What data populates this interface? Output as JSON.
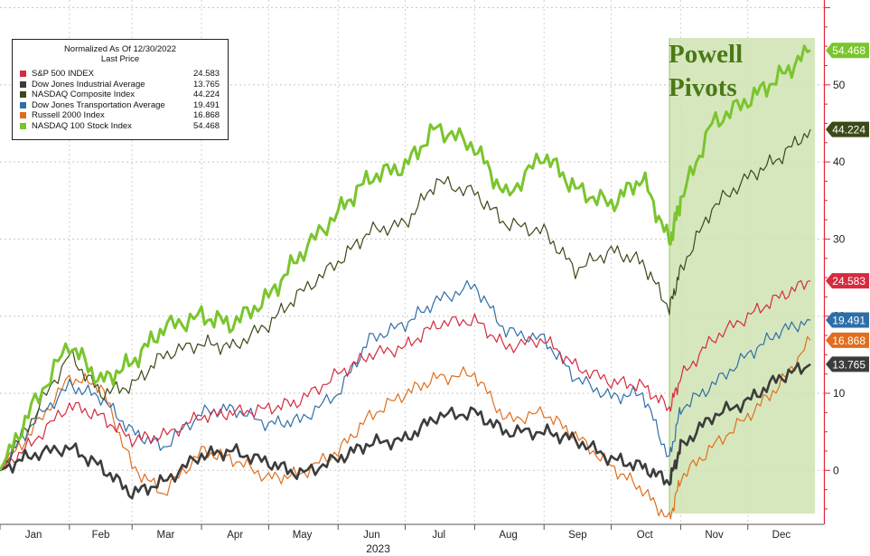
{
  "chart_data": {
    "type": "line",
    "title": "",
    "xlabel": "2023",
    "ylabel": "",
    "ylim": [
      -7,
      61
    ],
    "x_ticks": [
      "Jan",
      "Feb",
      "Mar",
      "Apr",
      "May",
      "Jun",
      "Jul",
      "Aug",
      "Sep",
      "Oct",
      "Nov",
      "Dec"
    ],
    "y_ticks": [
      0,
      10,
      20,
      30,
      40,
      50
    ],
    "grid": true,
    "legend_placement": "top-left",
    "legend_header": [
      "Normalized As Of 12/30/2022",
      "Last Price"
    ],
    "annotation": {
      "text": "Powell\nPivots",
      "x_start": "2023-10-27",
      "x_end": "2023-12-31"
    },
    "x": [
      "2023-01-01",
      "2023-01-15",
      "2023-02-01",
      "2023-02-15",
      "2023-03-01",
      "2023-03-15",
      "2023-04-01",
      "2023-04-15",
      "2023-05-01",
      "2023-05-15",
      "2023-06-01",
      "2023-06-15",
      "2023-07-01",
      "2023-07-15",
      "2023-08-01",
      "2023-08-15",
      "2023-09-01",
      "2023-09-15",
      "2023-10-01",
      "2023-10-15",
      "2023-10-27",
      "2023-11-01",
      "2023-11-15",
      "2023-12-01",
      "2023-12-15",
      "2023-12-29"
    ],
    "series": [
      {
        "name": "S&P 500 INDEX",
        "color": "#d62a3f",
        "last": "24.583",
        "width": 1.2,
        "values": [
          0,
          3.5,
          8.5,
          7.0,
          4.0,
          4.5,
          7.0,
          7.5,
          8.0,
          9.0,
          12.5,
          15.0,
          16.0,
          19.0,
          19.5,
          16.0,
          17.0,
          13.5,
          11.5,
          11.0,
          8.0,
          12.0,
          17.0,
          20.0,
          22.5,
          24.583
        ]
      },
      {
        "name": "Dow Jones Industrial Average",
        "color": "#3c3c3c",
        "last": "13.765",
        "width": 2.6,
        "values": [
          0,
          2.0,
          3.0,
          0.5,
          -3.0,
          -1.5,
          2.0,
          2.5,
          1.0,
          -0.5,
          1.5,
          3.5,
          4.0,
          7.0,
          7.5,
          5.0,
          5.0,
          4.0,
          1.5,
          0.5,
          -1.5,
          3.0,
          7.0,
          9.0,
          12.0,
          13.765
        ]
      },
      {
        "name": "NASDAQ Composite Index",
        "color": "#3a4a18",
        "last": "44.224",
        "width": 1.2,
        "values": [
          0,
          6.5,
          15.0,
          10.0,
          11.0,
          15.0,
          16.5,
          16.0,
          19.0,
          23.0,
          27.0,
          31.0,
          32.0,
          37.5,
          36.0,
          32.0,
          31.0,
          26.0,
          28.5,
          27.0,
          21.0,
          26.0,
          34.0,
          38.0,
          40.5,
          44.224
        ]
      },
      {
        "name": "Dow Jones Transportation Average",
        "color": "#2e6ea8",
        "last": "19.491",
        "width": 1.2,
        "values": [
          0,
          6.0,
          11.0,
          9.5,
          5.0,
          3.0,
          7.5,
          8.0,
          6.0,
          6.5,
          10.0,
          17.0,
          19.0,
          22.0,
          24.0,
          18.0,
          17.0,
          12.0,
          9.5,
          10.0,
          1.5,
          8.0,
          11.0,
          15.0,
          18.0,
          19.491
        ]
      },
      {
        "name": "Russell 2000 Index",
        "color": "#e06e1e",
        "last": "16.868",
        "width": 1.2,
        "values": [
          0,
          5.0,
          12.0,
          11.0,
          0.5,
          -3.0,
          2.5,
          1.5,
          -1.0,
          -0.5,
          2.5,
          7.0,
          10.0,
          12.0,
          12.5,
          6.5,
          7.5,
          4.5,
          0.5,
          -2.5,
          -6.5,
          -1.0,
          3.0,
          7.0,
          11.0,
          16.868
        ]
      },
      {
        "name": "NASDAQ 100 Stock Index",
        "color": "#7ac52e",
        "last": "54.468",
        "width": 3.0,
        "values": [
          0,
          8.0,
          16.5,
          11.5,
          14.0,
          18.5,
          20.0,
          19.0,
          22.5,
          28.0,
          33.5,
          38.0,
          39.5,
          44.5,
          42.0,
          35.5,
          41.0,
          36.5,
          34.5,
          38.0,
          29.5,
          35.0,
          45.0,
          48.0,
          51.0,
          54.468
        ]
      }
    ]
  }
}
